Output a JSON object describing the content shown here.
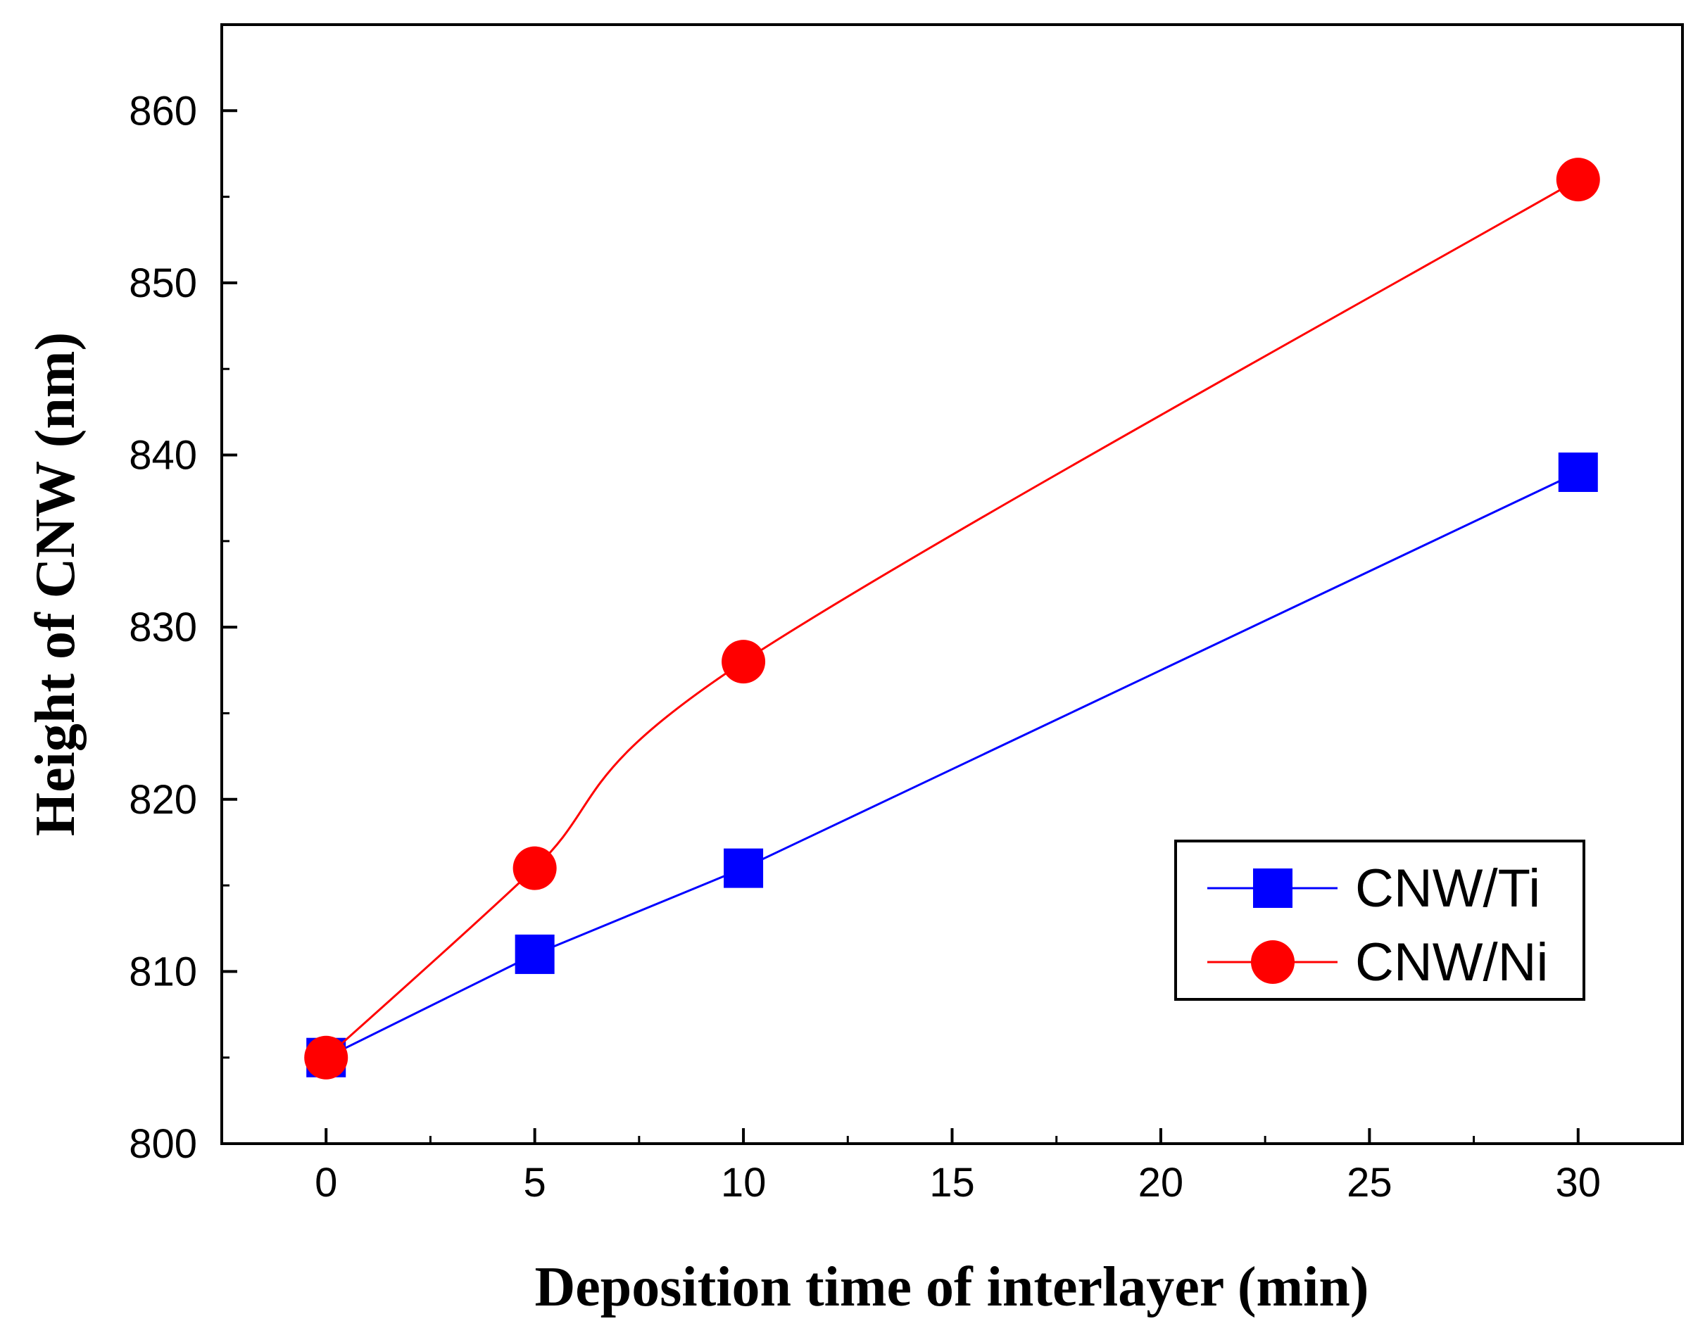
{
  "chart_data": {
    "type": "line",
    "title": "",
    "xlabel": "Deposition time of interlayer (min)",
    "ylabel": "Height of CNW (nm)",
    "xlim": [
      -2.5,
      32.5
    ],
    "ylim": [
      800,
      865
    ],
    "xticks": [
      0,
      5,
      10,
      15,
      20,
      25,
      30
    ],
    "yticks": [
      800,
      810,
      820,
      830,
      840,
      850,
      860
    ],
    "xtick_labels": [
      "0",
      "5",
      "10",
      "15",
      "20",
      "25",
      "30"
    ],
    "ytick_labels": [
      "800",
      "810",
      "820",
      "830",
      "840",
      "850",
      "860"
    ],
    "grid": false,
    "legend_position": "bottom-right",
    "series": [
      {
        "name": "CNW/Ti",
        "color": "#0000ff",
        "marker": "square",
        "x": [
          0,
          5,
          10,
          30
        ],
        "y": [
          805,
          811,
          816,
          839
        ]
      },
      {
        "name": "CNW/Ni",
        "color": "#ff0000",
        "marker": "circle",
        "x": [
          0,
          5,
          10,
          30
        ],
        "y": [
          805,
          816,
          828,
          856
        ]
      }
    ]
  }
}
